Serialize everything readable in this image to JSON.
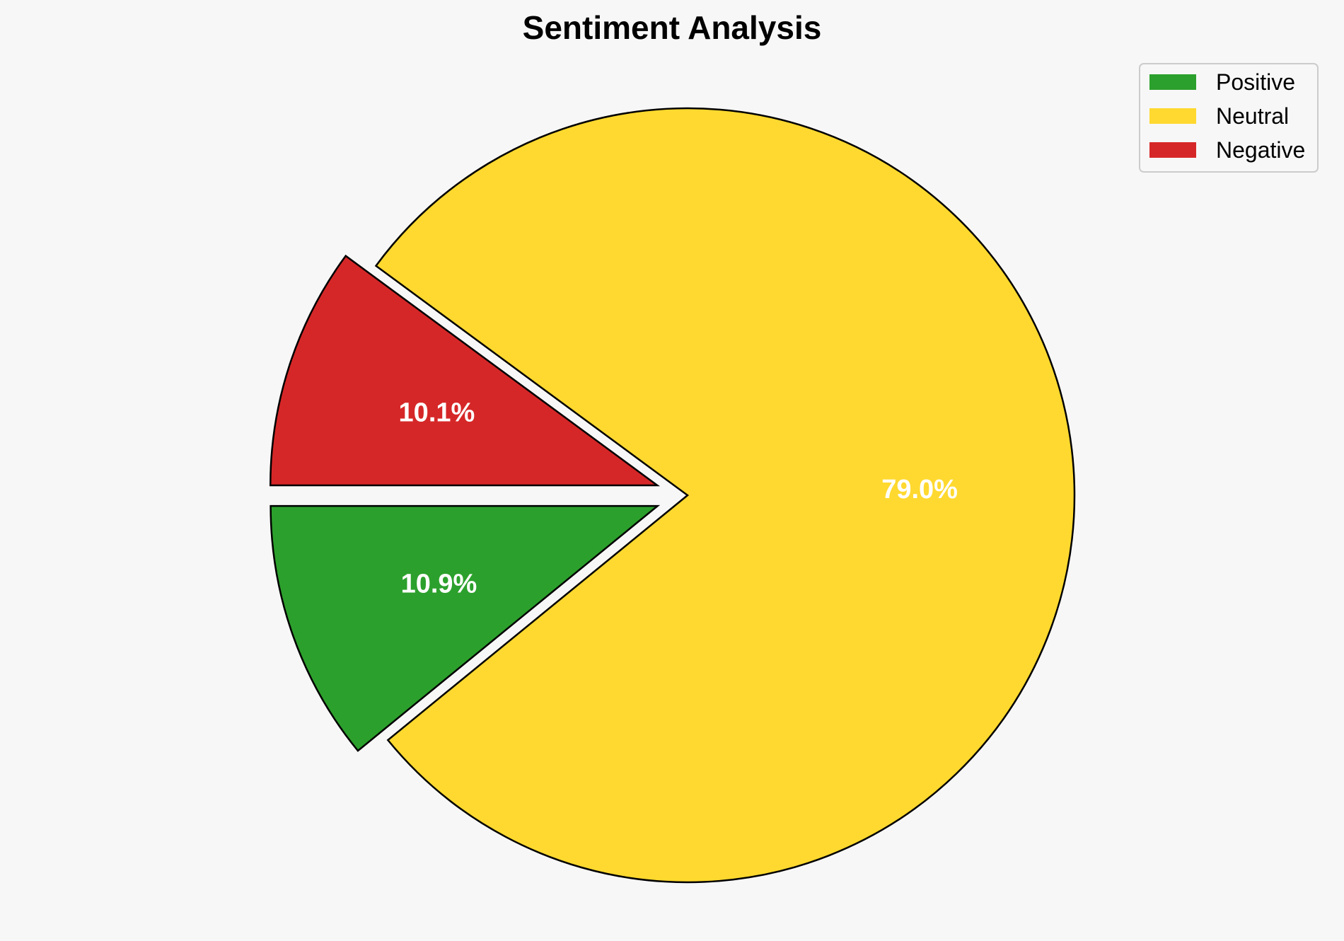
{
  "chart_data": {
    "type": "pie",
    "title": "Sentiment Analysis",
    "categories": [
      "Positive",
      "Neutral",
      "Negative"
    ],
    "values": [
      10.9,
      79.0,
      10.1
    ],
    "labels": [
      "10.9%",
      "79.0%",
      "10.1%"
    ],
    "colors": [
      "#2ca02c",
      "#ffd92f",
      "#d62728"
    ],
    "exploded": [
      true,
      false,
      true
    ],
    "start_angle_deg": 180,
    "direction": "counterclockwise",
    "legend": {
      "placement": "top-right",
      "entries": [
        "Positive",
        "Neutral",
        "Negative"
      ]
    }
  }
}
